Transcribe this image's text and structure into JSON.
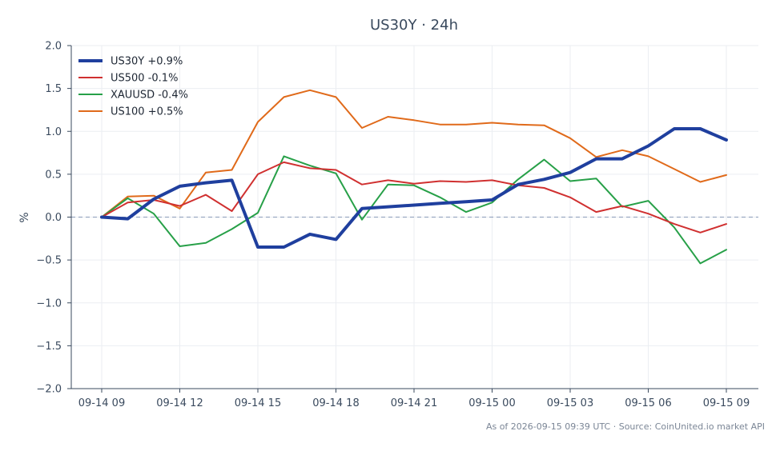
{
  "chart_data": {
    "type": "line",
    "title": "US30Y · 24h",
    "xlabel": "",
    "ylabel": "%",
    "ylim": [
      -2.0,
      2.0
    ],
    "yticks": [
      "2.0",
      "1.5",
      "1.0",
      "0.5",
      "0.0",
      "−0.5",
      "−1.0",
      "−1.5",
      "−2.0"
    ],
    "ytick_values": [
      2.0,
      1.5,
      1.0,
      0.5,
      0.0,
      -0.5,
      -1.0,
      -1.5,
      -2.0
    ],
    "x": [
      "09-14 09",
      "09-14 10",
      "09-14 11",
      "09-14 12",
      "09-14 13",
      "09-14 14",
      "09-14 15",
      "09-14 16",
      "09-14 17",
      "09-14 18",
      "09-14 19",
      "09-14 20",
      "09-14 21",
      "09-14 22",
      "09-14 23",
      "09-15 00",
      "09-15 01",
      "09-15 02",
      "09-15 03",
      "09-15 04",
      "09-15 05",
      "09-15 06",
      "09-15 07",
      "09-15 08",
      "09-15 09"
    ],
    "xticks": [
      "09-14 09",
      "09-14 12",
      "09-14 15",
      "09-14 18",
      "09-14 21",
      "09-15 00",
      "09-15 03",
      "09-15 06",
      "09-15 09"
    ],
    "grid": true,
    "legend_position": "top-left",
    "zero_line": true,
    "series": [
      {
        "name": "US30Y +0.9%",
        "color": "#1f3f9e",
        "width": 4,
        "values": [
          0.0,
          -0.02,
          0.21,
          0.36,
          0.4,
          0.43,
          -0.35,
          -0.35,
          -0.2,
          -0.26,
          0.1,
          0.12,
          0.14,
          0.16,
          0.18,
          0.2,
          0.38,
          0.44,
          0.52,
          0.68,
          0.68,
          0.83,
          1.03,
          1.03,
          0.9
        ]
      },
      {
        "name": "US500 -0.1%",
        "color": "#d03030",
        "width": 2,
        "values": [
          0.0,
          0.17,
          0.2,
          0.13,
          0.26,
          0.07,
          0.5,
          0.64,
          0.57,
          0.55,
          0.38,
          0.43,
          0.39,
          0.42,
          0.41,
          0.43,
          0.37,
          0.34,
          0.23,
          0.06,
          0.13,
          0.04,
          -0.08,
          -0.18,
          -0.08
        ]
      },
      {
        "name": "XAUUSD -0.4%",
        "color": "#27a048",
        "width": 2,
        "values": [
          0.0,
          0.22,
          0.04,
          -0.34,
          -0.3,
          -0.14,
          0.05,
          0.71,
          0.6,
          0.51,
          -0.03,
          0.38,
          0.37,
          0.23,
          0.06,
          0.17,
          0.44,
          0.67,
          0.42,
          0.45,
          0.12,
          0.19,
          -0.12,
          -0.54,
          -0.38
        ]
      },
      {
        "name": "US100 +0.5%",
        "color": "#e06a1a",
        "width": 2,
        "values": [
          0.0,
          0.24,
          0.25,
          0.1,
          0.52,
          0.55,
          1.11,
          1.4,
          1.48,
          1.4,
          1.04,
          1.17,
          1.13,
          1.08,
          1.08,
          1.1,
          1.08,
          1.07,
          0.92,
          0.7,
          0.78,
          0.71,
          0.56,
          0.41,
          0.49
        ]
      }
    ]
  },
  "footer": "As of 2026-09-15 09:39 UTC · Source: CoinUnited.io market API"
}
